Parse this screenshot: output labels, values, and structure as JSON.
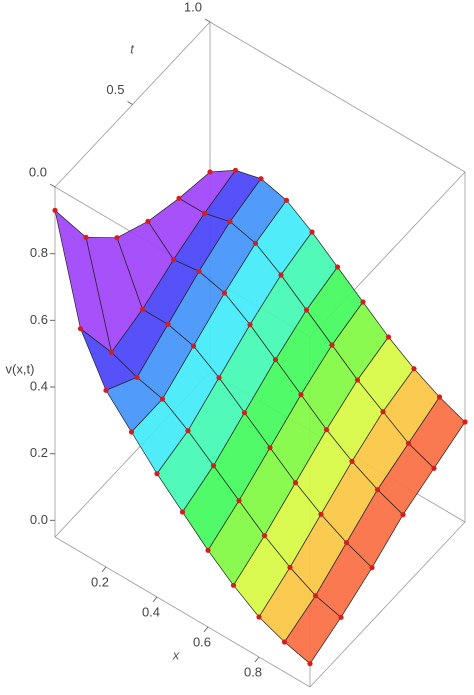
{
  "chart_data": {
    "type": "surface",
    "xlabel": "x",
    "tlabel": "t",
    "zlabel": "v(x,t)",
    "x": [
      0,
      0.1,
      0.2,
      0.3,
      0.4,
      0.5,
      0.6,
      0.7,
      0.8,
      0.9,
      1.0
    ],
    "t": [
      0,
      0.2,
      0.4,
      0.6,
      0.8,
      1.0
    ],
    "z": [
      [
        0.93,
        0.62,
        0.48,
        0.4,
        0.32,
        0.25,
        0.18,
        0.12,
        0.07,
        0.04,
        0.02
      ],
      [
        0.75,
        0.45,
        0.42,
        0.4,
        0.35,
        0.29,
        0.23,
        0.17,
        0.12,
        0.08,
        0.06
      ],
      [
        0.65,
        0.48,
        0.48,
        0.46,
        0.41,
        0.35,
        0.29,
        0.23,
        0.18,
        0.14,
        0.11
      ],
      [
        0.6,
        0.53,
        0.54,
        0.52,
        0.47,
        0.41,
        0.35,
        0.29,
        0.24,
        0.2,
        0.17
      ],
      [
        0.57,
        0.57,
        0.59,
        0.57,
        0.52,
        0.46,
        0.4,
        0.34,
        0.29,
        0.24,
        0.21
      ],
      [
        0.55,
        0.6,
        0.62,
        0.6,
        0.55,
        0.49,
        0.43,
        0.37,
        0.32,
        0.28,
        0.25
      ]
    ],
    "xlim": [
      0,
      1
    ],
    "tlim": [
      0,
      1
    ],
    "zlim": [
      -0.05,
      1.0
    ],
    "xticks": [
      0.2,
      0.4,
      0.6,
      0.8
    ],
    "tticks": [
      {
        "value": 0,
        "label": "0.0"
      },
      0.5,
      {
        "value": 1,
        "label": "1.0"
      }
    ],
    "zticks": [
      {
        "value": 0,
        "label": "0.0"
      },
      0.2,
      0.4,
      0.6,
      0.8
    ],
    "point_color": "#d81c1c",
    "mesh_color": "#222222",
    "colormap": "rainbow"
  }
}
